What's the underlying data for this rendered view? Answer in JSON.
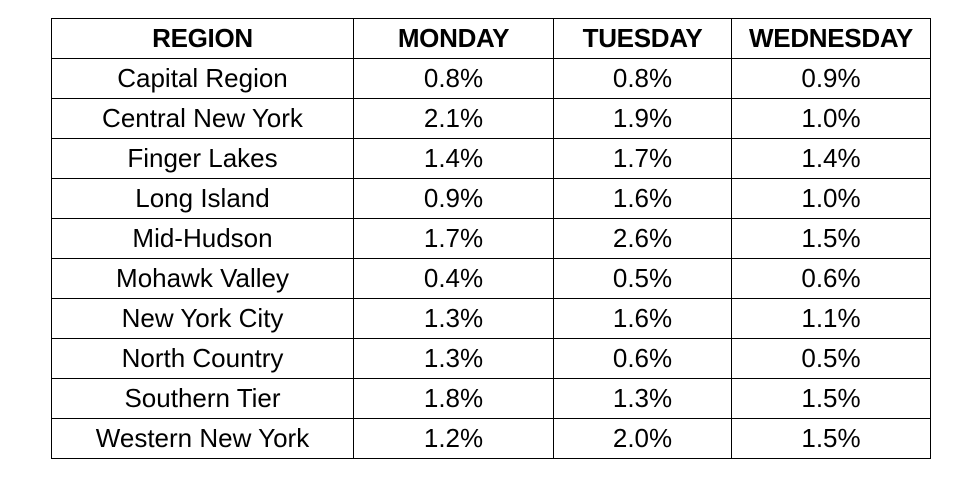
{
  "table": {
    "headers": [
      "REGION",
      "MONDAY",
      "TUESDAY",
      "WEDNESDAY"
    ],
    "rows": [
      [
        "Capital Region",
        "0.8%",
        "0.8%",
        "0.9%"
      ],
      [
        "Central New York",
        "2.1%",
        "1.9%",
        "1.0%"
      ],
      [
        "Finger Lakes",
        "1.4%",
        "1.7%",
        "1.4%"
      ],
      [
        "Long Island",
        "0.9%",
        "1.6%",
        "1.0%"
      ],
      [
        "Mid-Hudson",
        "1.7%",
        "2.6%",
        "1.5%"
      ],
      [
        "Mohawk Valley",
        "0.4%",
        "0.5%",
        "0.6%"
      ],
      [
        "New York City",
        "1.3%",
        "1.6%",
        "1.1%"
      ],
      [
        "North Country",
        "1.3%",
        "0.6%",
        "0.5%"
      ],
      [
        "Southern Tier",
        "1.8%",
        "1.3%",
        "1.5%"
      ],
      [
        "Western New York",
        "1.2%",
        "2.0%",
        "1.5%"
      ]
    ]
  }
}
